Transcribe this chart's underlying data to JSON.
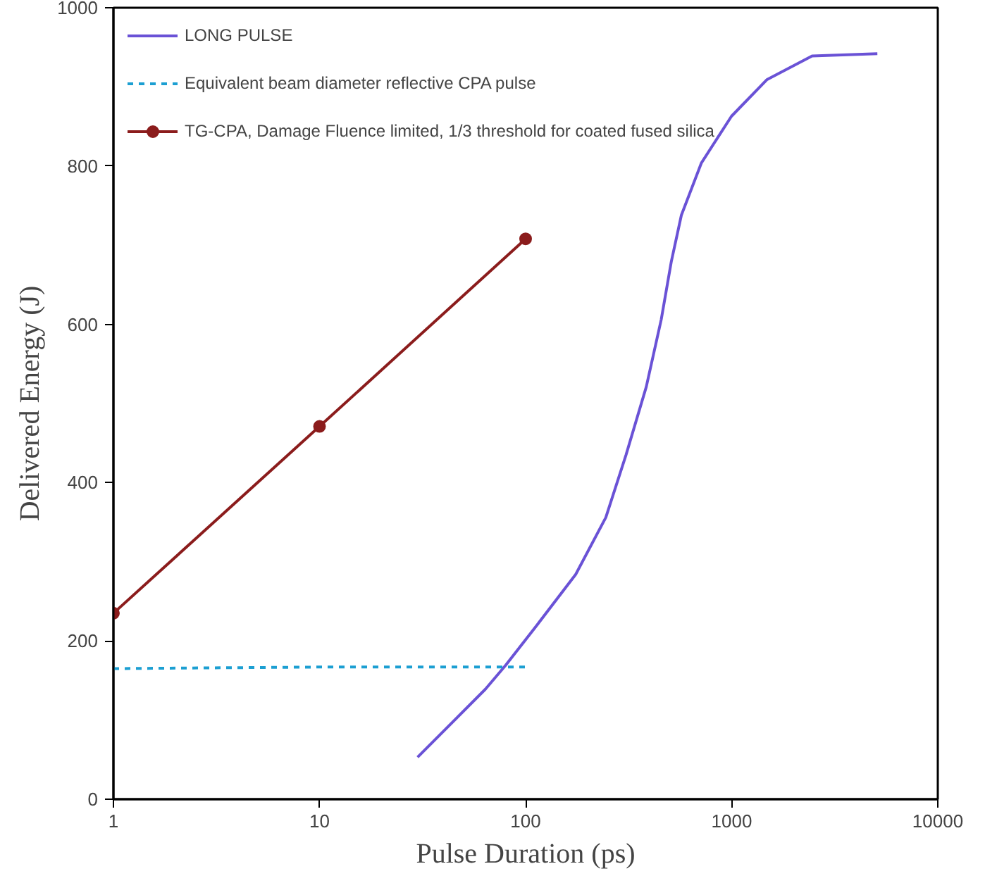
{
  "chart_data": {
    "type": "line",
    "xlabel": "Pulse Duration (ps)",
    "ylabel": "Delivered Energy (J)",
    "log": "x",
    "xlim": [
      1,
      10000
    ],
    "xticks": [
      1,
      10,
      100,
      1000,
      10000
    ],
    "ylim": [
      0,
      1000
    ],
    "yticks": [
      0,
      200,
      400,
      600,
      800,
      1000
    ],
    "grid": false,
    "legend": "top left",
    "series": [
      {
        "name": "LONG PULSE",
        "color": "#6a52d6",
        "line_style": "solid",
        "marker": "none",
        "x": [
          29.9,
          63.8,
          79.9,
          112,
          175,
          245,
          307,
          385,
          455,
          509,
          570,
          713,
          998,
          1479,
          2455,
          5090
        ],
        "values": [
          53,
          139,
          169,
          218,
          284,
          356,
          435,
          521,
          606,
          679,
          738,
          804,
          863,
          909,
          939,
          942
        ]
      },
      {
        "name": "Equivalent beam diameter reflective CPA pulse",
        "color": "#1c9fd2",
        "line_style": "dashed",
        "marker": "none",
        "x": [
          1,
          10,
          100
        ],
        "values": [
          165,
          167,
          167
        ]
      },
      {
        "name": "TG-CPA, Damage Fluence limited, 1/3 threshold for coated fused silica",
        "color": "#8b1c1c",
        "line_style": "solid",
        "marker": "circle",
        "x": [
          1,
          10,
          100
        ],
        "values": [
          235,
          471,
          708
        ]
      }
    ]
  }
}
